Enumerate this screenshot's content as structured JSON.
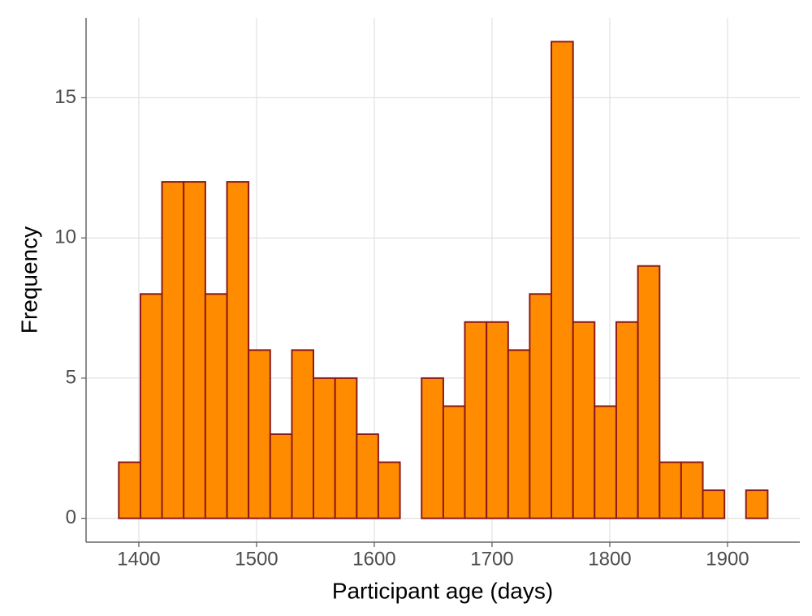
{
  "chart_data": {
    "type": "histogram",
    "x_label": "Participant age (days)",
    "y_label": "Frequency",
    "bins": [
      1383.0,
      1401.4,
      1419.7,
      1438.1,
      1456.5,
      1474.9,
      1493.2,
      1511.6,
      1530.0,
      1548.3,
      1566.7,
      1585.1,
      1603.4,
      1621.8,
      1640.2,
      1658.6,
      1676.9,
      1695.3,
      1713.7,
      1732.0,
      1750.4,
      1768.8,
      1787.1,
      1805.5,
      1823.9,
      1842.3,
      1860.6,
      1879.0,
      1897.4,
      1915.7,
      1934.1
    ],
    "values": [
      2,
      8,
      12,
      12,
      8,
      12,
      6,
      3,
      6,
      5,
      5,
      3,
      2,
      0,
      5,
      4,
      7,
      7,
      6,
      8,
      17,
      7,
      4,
      7,
      9,
      2,
      2,
      1,
      0,
      1
    ],
    "color": "#ff8c00",
    "edge_color": "#8b1a1a",
    "xlim": [
      1355.2,
      1961.4
    ],
    "xticks": [
      1400,
      1500,
      1600,
      1700,
      1800,
      1900
    ],
    "ylim": [
      -0.85,
      17.85
    ],
    "yticks": [
      0,
      5,
      10,
      15
    ],
    "grid": true
  }
}
